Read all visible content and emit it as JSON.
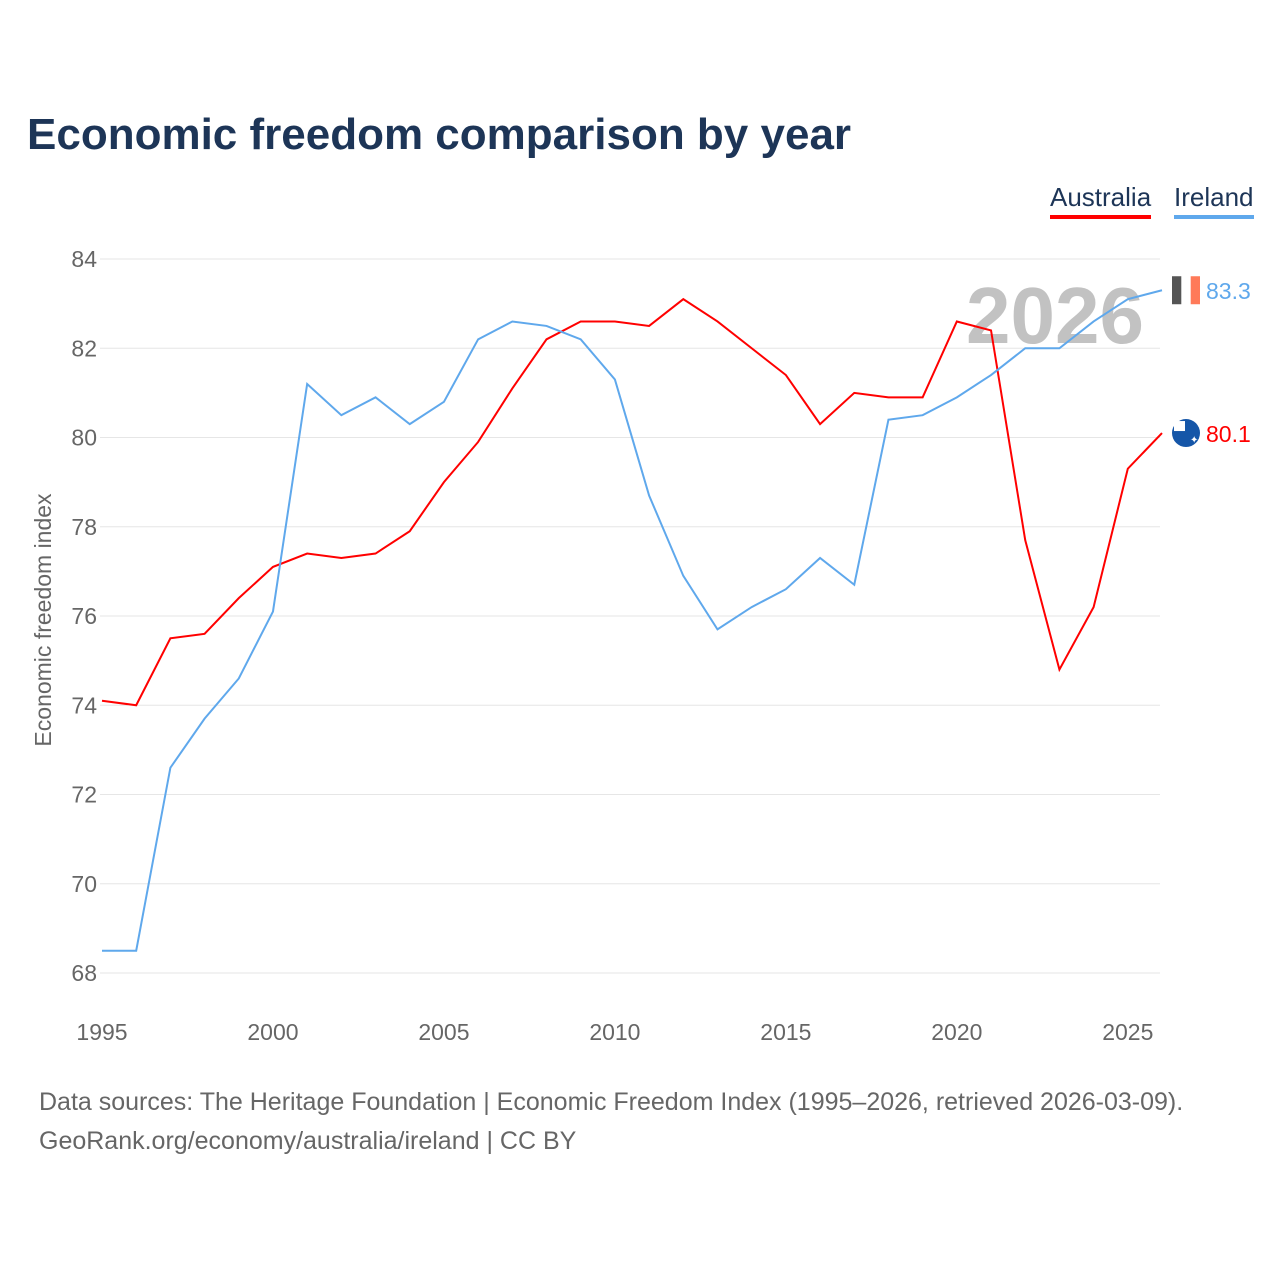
{
  "chart_data": {
    "type": "line",
    "title": "Economic freedom comparison by year",
    "xlabel": "",
    "ylabel": "Economic freedom index",
    "xlim": [
      1995,
      2026
    ],
    "ylim": [
      68,
      84
    ],
    "xticks": [
      1995,
      2000,
      2005,
      2010,
      2015,
      2020,
      2025
    ],
    "yticks": [
      68,
      70,
      72,
      74,
      76,
      78,
      80,
      82,
      84
    ],
    "grid": true,
    "legend_placement": "top-right",
    "year_label": "2026",
    "x": [
      1995,
      1996,
      1997,
      1998,
      1999,
      2000,
      2001,
      2002,
      2003,
      2004,
      2005,
      2006,
      2007,
      2008,
      2009,
      2010,
      2011,
      2012,
      2013,
      2014,
      2015,
      2016,
      2017,
      2018,
      2019,
      2020,
      2021,
      2022,
      2023,
      2024,
      2025,
      2026
    ],
    "series": [
      {
        "name": "Australia",
        "color": "#ff0000",
        "end_label": "80.1",
        "values": [
          74.1,
          74.0,
          75.5,
          75.6,
          76.4,
          77.1,
          77.4,
          77.3,
          77.4,
          77.9,
          79.0,
          79.9,
          81.1,
          82.2,
          82.6,
          82.6,
          82.5,
          83.1,
          82.6,
          82.0,
          81.4,
          80.3,
          81.0,
          80.9,
          80.9,
          82.6,
          82.4,
          77.7,
          74.8,
          76.2,
          79.3,
          80.1
        ]
      },
      {
        "name": "Ireland",
        "color": "#5fa8ec",
        "end_label": "83.3",
        "values": [
          68.5,
          68.5,
          72.6,
          73.7,
          74.6,
          76.1,
          81.2,
          80.5,
          80.9,
          80.3,
          80.8,
          82.2,
          82.6,
          82.5,
          82.2,
          81.3,
          78.7,
          76.9,
          75.7,
          76.2,
          76.6,
          77.3,
          76.7,
          80.4,
          80.5,
          80.9,
          81.4,
          82.0,
          82.0,
          82.6,
          83.1,
          83.3
        ]
      }
    ]
  },
  "sources": {
    "line1": "Data sources: The Heritage Foundation | Economic Freedom Index (1995–2026, retrieved 2026-03-09).",
    "line2": "GeoRank.org/economy/australia/ireland | CC BY"
  }
}
